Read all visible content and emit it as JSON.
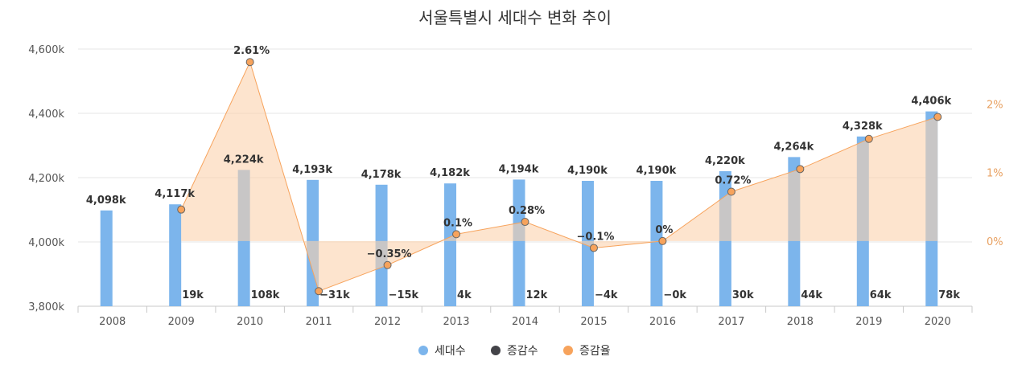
{
  "chart_data": {
    "type": "bar",
    "title": "서울특별시 세대수 변화 추이",
    "categories": [
      "2008",
      "2009",
      "2010",
      "2011",
      "2012",
      "2013",
      "2014",
      "2015",
      "2016",
      "2017",
      "2018",
      "2019",
      "2020"
    ],
    "series": [
      {
        "name": "세대수",
        "type": "bar",
        "axis": "left",
        "color": "#7cb5ec",
        "values": [
          4098,
          4117,
          4224,
          4193,
          4178,
          4182,
          4194,
          4190,
          4190,
          4220,
          4264,
          4328,
          4406
        ],
        "labels": [
          "4,098k",
          "4,117k",
          "4,224k",
          "4,193k",
          "4,178k",
          "4,182k",
          "4,194k",
          "4,190k",
          "4,190k",
          "4,220k",
          "4,264k",
          "4,328k",
          "4,406k"
        ]
      },
      {
        "name": "증감수",
        "type": "label",
        "color": "#434348",
        "values": [
          null,
          19,
          108,
          -31,
          -15,
          4,
          12,
          -4,
          0,
          30,
          44,
          64,
          78
        ],
        "labels": [
          "",
          "19k",
          "108k",
          "−31k",
          "−15k",
          "4k",
          "12k",
          "−4k",
          "−0k",
          "30k",
          "44k",
          "64k",
          "78k"
        ]
      },
      {
        "name": "증감율",
        "type": "area",
        "axis": "right",
        "color": "#f7a35c",
        "values": [
          null,
          0.46,
          2.61,
          -0.73,
          -0.35,
          0.1,
          0.28,
          -0.1,
          0,
          0.72,
          1.05,
          1.49,
          1.81
        ],
        "labels": [
          "",
          "",
          "2.61%",
          "",
          "−0.35%",
          "0.1%",
          "0.28%",
          "−0.1%",
          "0%",
          "0.72%",
          "",
          "",
          ""
        ]
      }
    ],
    "yAxisLeft": {
      "min": 3800,
      "max": 4600,
      "ticks": [
        3800,
        4000,
        4200,
        4400,
        4600
      ],
      "tick_labels": [
        "3,800k",
        "4,000k",
        "4,200k",
        "4,400k",
        "4,600k"
      ]
    },
    "yAxisRight": {
      "min": -0.95,
      "max": 2.8,
      "ticks": [
        0,
        1,
        2
      ],
      "tick_labels": [
        "0%",
        "1%",
        "2%"
      ]
    },
    "legend_position": "bottom",
    "grid": true
  }
}
